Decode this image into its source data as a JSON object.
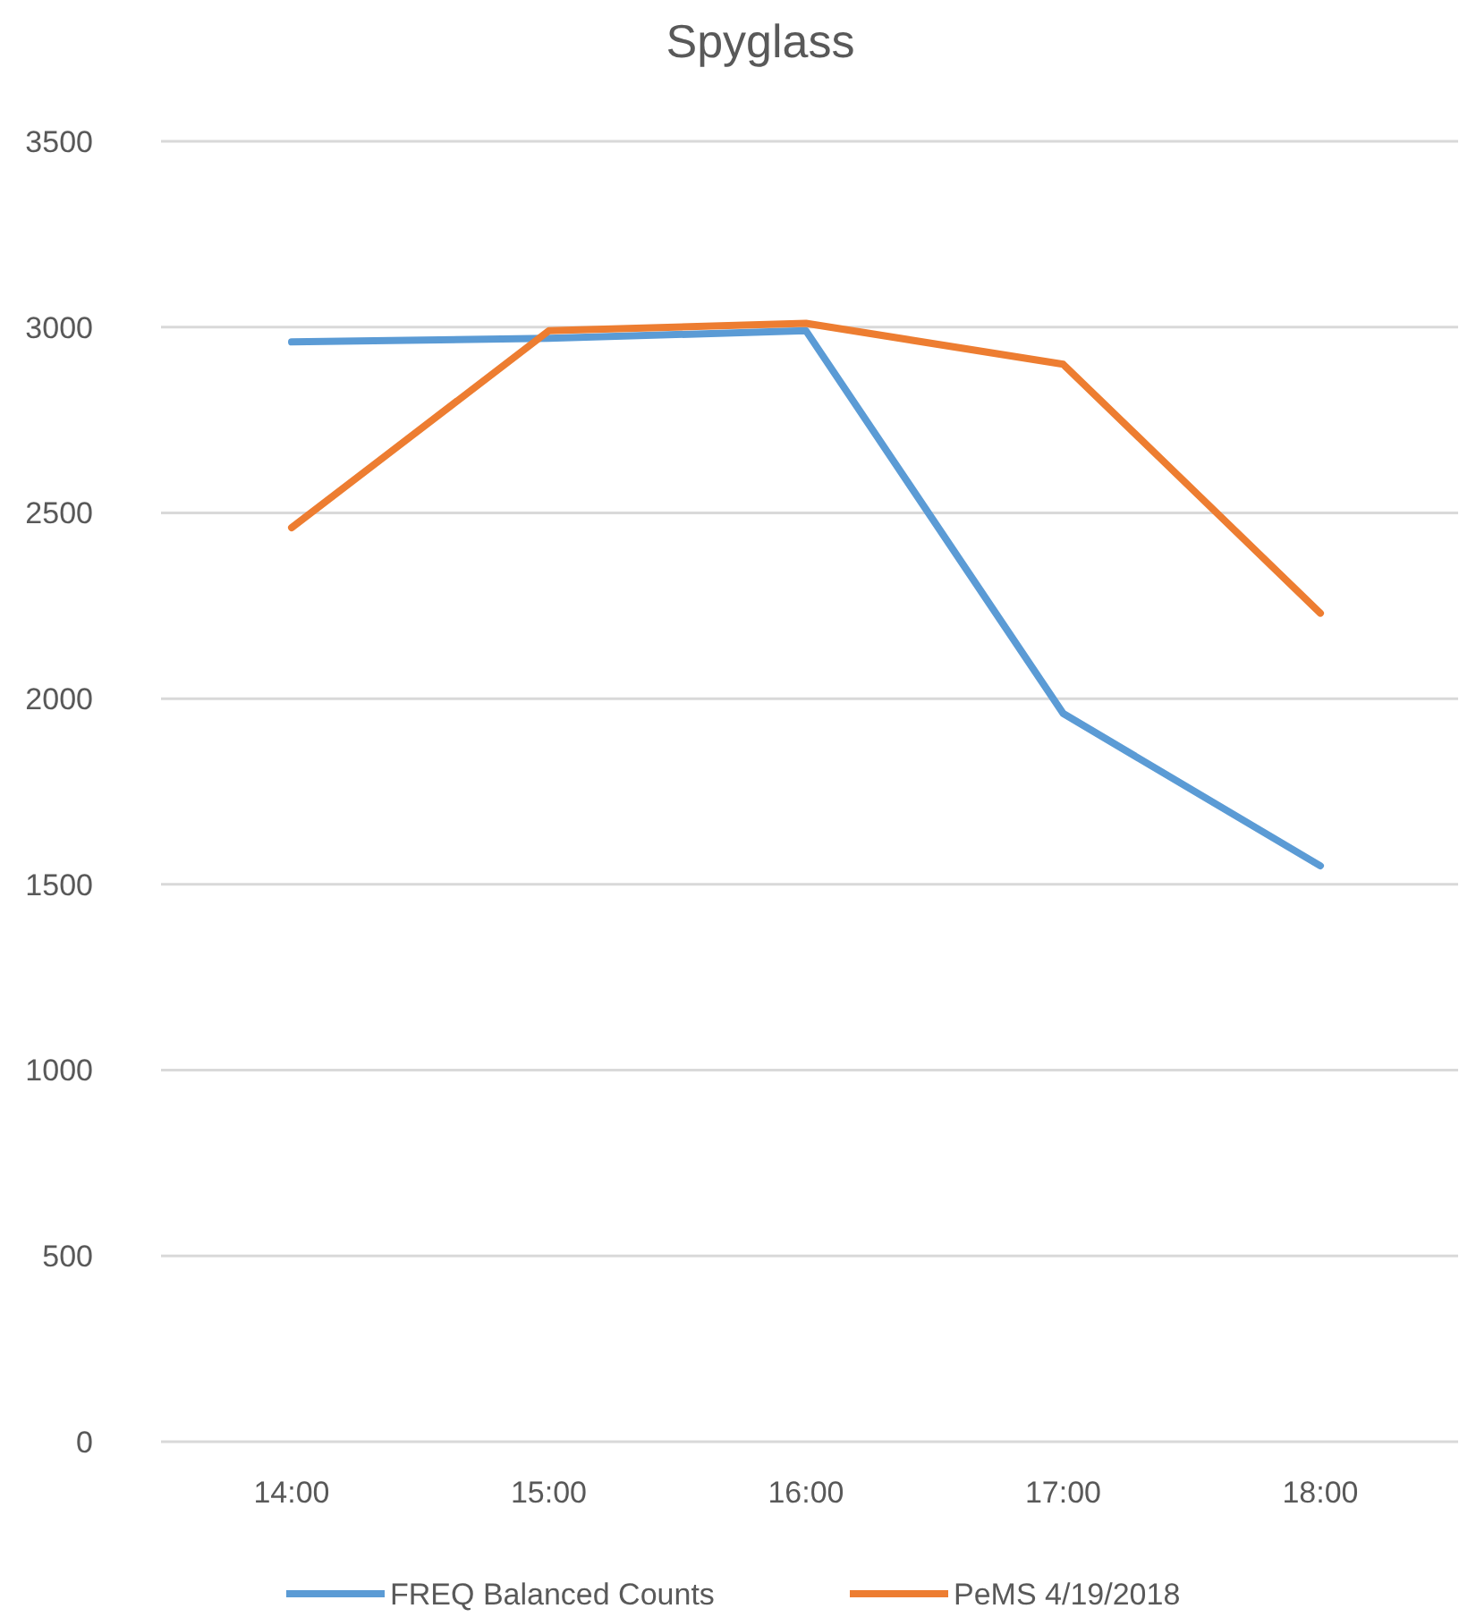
{
  "chart_data": {
    "type": "line",
    "title": "Spyglass",
    "categories": [
      "14:00",
      "15:00",
      "16:00",
      "17:00",
      "18:00"
    ],
    "series": [
      {
        "name": "FREQ Balanced Counts",
        "color": "#5b9bd5",
        "values": [
          2960,
          2970,
          2990,
          1960,
          1550
        ]
      },
      {
        "name": "PeMS 4/19/2018",
        "color": "#ed7d31",
        "values": [
          2460,
          2990,
          3010,
          2900,
          2230
        ]
      }
    ],
    "ylim": [
      0,
      3500
    ],
    "yticks": [
      0,
      500,
      1000,
      1500,
      2000,
      2500,
      3000,
      3500
    ],
    "grid": "y",
    "legend": "bottom",
    "marker": "none",
    "line_style": "solid"
  }
}
